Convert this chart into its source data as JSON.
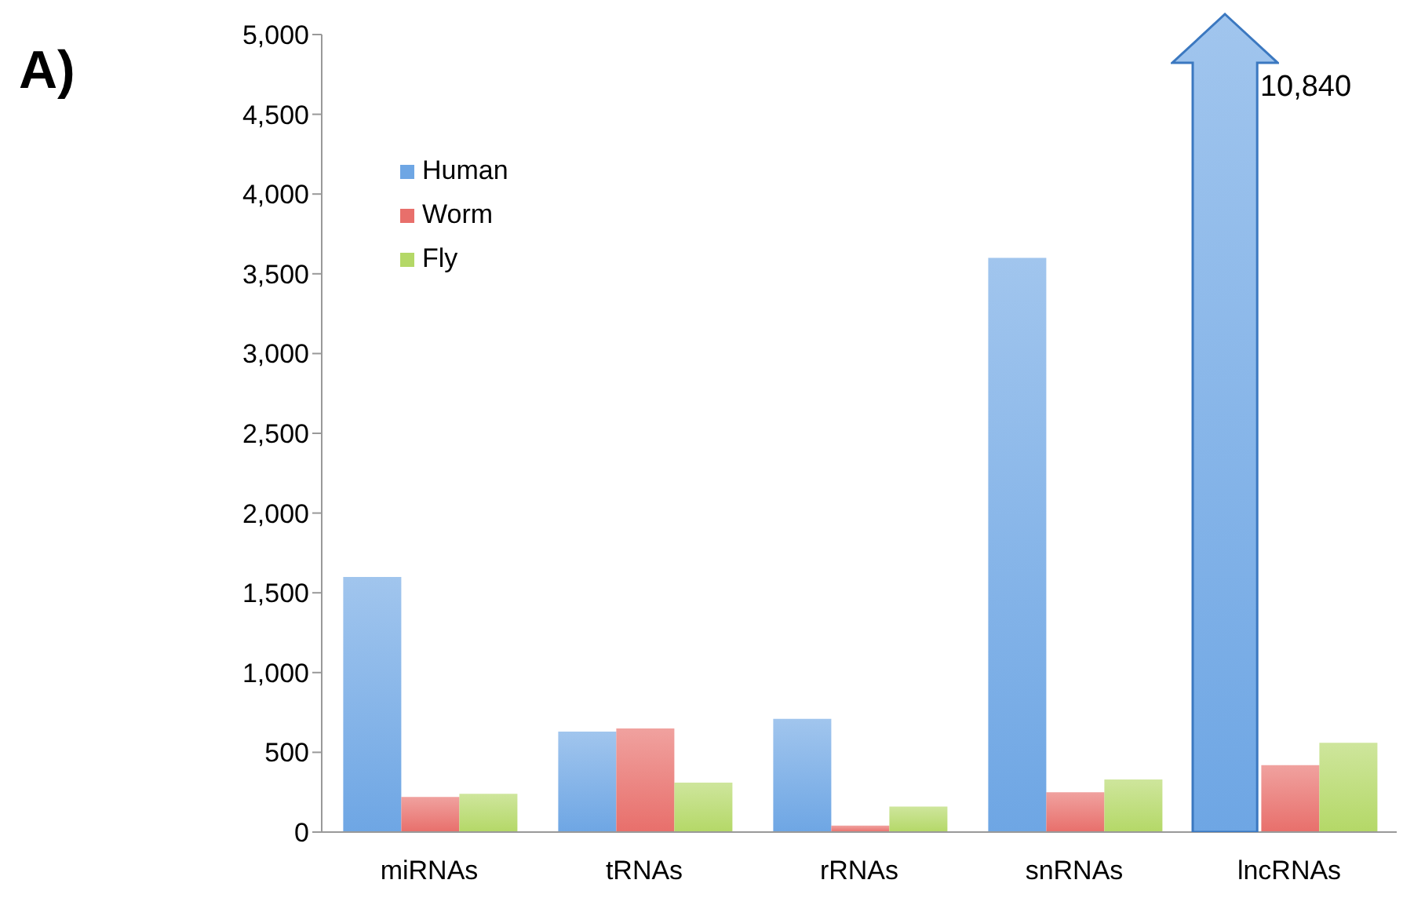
{
  "chart_data": {
    "type": "bar",
    "categories": [
      "miRNAs",
      "tRNAs",
      "rRNAs",
      "snRNAs",
      "lncRNAs"
    ],
    "series": [
      {
        "name": "Human",
        "color": "#6ea6e4",
        "values": [
          1600,
          630,
          710,
          3600,
          null
        ]
      },
      {
        "name": "Worm",
        "color": "#e86f6b",
        "values": [
          220,
          650,
          40,
          250,
          420
        ]
      },
      {
        "name": "Fly",
        "color": "#b4d867",
        "values": [
          240,
          310,
          160,
          330,
          560
        ]
      }
    ],
    "ylim": [
      0,
      5000
    ],
    "yticks": [
      0,
      500,
      {
        "value": 1000,
        "label": "1,000"
      },
      {
        "value": 1500,
        "label": "1,500"
      },
      {
        "value": 2000,
        "label": "2,000"
      },
      {
        "value": 2500,
        "label": "2,500"
      },
      {
        "value": 3000,
        "label": "3,000"
      },
      {
        "value": 3500,
        "label": "3,500"
      },
      {
        "value": 4000,
        "label": "4,000"
      },
      {
        "value": 4500,
        "label": "4,500"
      },
      {
        "value": 5000,
        "label": "5,000"
      }
    ],
    "grid": false,
    "legend": "top left",
    "annotations": [
      "A)",
      "10,840"
    ]
  }
}
